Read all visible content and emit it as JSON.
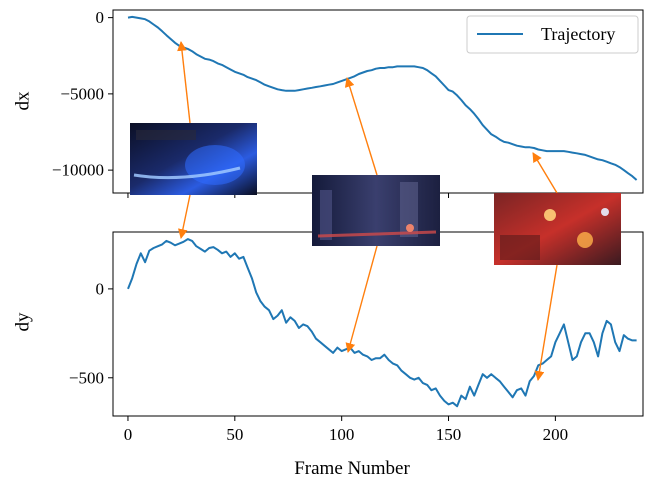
{
  "chart_data": [
    {
      "type": "line",
      "ylabel": "dx",
      "xlim": [
        -7,
        241
      ],
      "ylim": [
        -11500,
        500
      ],
      "yticks": [
        0,
        -5000,
        -10000
      ],
      "ytick_labels": [
        "0",
        "−5000",
        "−10000"
      ],
      "legend": {
        "entries": [
          "Trajectory"
        ],
        "placement": "upper-right"
      },
      "series": [
        {
          "name": "Trajectory",
          "color": "#1f77b4",
          "x": [
            0,
            2,
            4,
            6,
            8,
            10,
            12,
            14,
            16,
            18,
            20,
            22,
            24,
            26,
            28,
            30,
            32,
            34,
            36,
            38,
            40,
            42,
            44,
            46,
            48,
            50,
            52,
            54,
            56,
            58,
            60,
            62,
            64,
            66,
            68,
            70,
            72,
            74,
            76,
            78,
            80,
            82,
            84,
            86,
            88,
            90,
            92,
            94,
            96,
            98,
            100,
            102,
            104,
            106,
            108,
            110,
            112,
            114,
            116,
            118,
            120,
            122,
            124,
            126,
            128,
            130,
            132,
            134,
            136,
            138,
            140,
            142,
            144,
            146,
            148,
            150,
            152,
            154,
            156,
            158,
            160,
            162,
            164,
            166,
            168,
            170,
            172,
            174,
            176,
            178,
            180,
            182,
            184,
            186,
            188,
            190,
            192,
            194,
            196,
            198,
            200,
            202,
            204,
            206,
            208,
            210,
            212,
            214,
            216,
            218,
            220,
            222,
            224,
            226,
            228,
            230,
            232,
            234,
            236,
            238
          ],
          "y": [
            0,
            50,
            0,
            -50,
            -100,
            -250,
            -450,
            -650,
            -900,
            -1150,
            -1400,
            -1650,
            -1850,
            -1950,
            -2050,
            -2200,
            -2400,
            -2550,
            -2700,
            -2750,
            -2850,
            -3000,
            -3100,
            -3250,
            -3400,
            -3550,
            -3650,
            -3750,
            -3900,
            -4000,
            -4100,
            -4250,
            -4400,
            -4500,
            -4600,
            -4700,
            -4750,
            -4800,
            -4800,
            -4800,
            -4750,
            -4700,
            -4650,
            -4600,
            -4550,
            -4500,
            -4450,
            -4400,
            -4350,
            -4250,
            -4150,
            -4050,
            -3950,
            -3850,
            -3700,
            -3600,
            -3500,
            -3450,
            -3350,
            -3300,
            -3300,
            -3250,
            -3250,
            -3200,
            -3200,
            -3200,
            -3200,
            -3200,
            -3250,
            -3300,
            -3450,
            -3650,
            -3850,
            -4150,
            -4450,
            -4750,
            -4850,
            -5100,
            -5400,
            -5750,
            -6000,
            -6300,
            -6650,
            -7050,
            -7350,
            -7650,
            -7800,
            -8000,
            -8150,
            -8200,
            -8300,
            -8400,
            -8450,
            -8500,
            -8500,
            -8550,
            -8650,
            -8700,
            -8750,
            -8750,
            -8750,
            -8750,
            -8750,
            -8800,
            -8850,
            -8900,
            -8950,
            -9000,
            -9100,
            -9200,
            -9300,
            -9350,
            -9450,
            -9550,
            -9650,
            -9800,
            -10000,
            -10200,
            -10400,
            -10650
          ]
        }
      ]
    },
    {
      "type": "line",
      "ylabel": "dy",
      "xlabel": "Frame Number",
      "xlim": [
        -7,
        241
      ],
      "ylim": [
        -715,
        320
      ],
      "xticks": [
        0,
        50,
        100,
        150,
        200
      ],
      "xtick_labels": [
        "0",
        "50",
        "100",
        "150",
        "200"
      ],
      "yticks": [
        0,
        -500
      ],
      "ytick_labels": [
        "0",
        "−500"
      ],
      "series": [
        {
          "name": "Trajectory",
          "color": "#1f77b4",
          "x": [
            0,
            2,
            4,
            6,
            8,
            10,
            12,
            14,
            16,
            18,
            20,
            22,
            24,
            26,
            28,
            30,
            32,
            34,
            36,
            38,
            40,
            42,
            44,
            46,
            48,
            50,
            52,
            54,
            56,
            58,
            60,
            62,
            64,
            66,
            68,
            70,
            72,
            74,
            76,
            78,
            80,
            82,
            84,
            86,
            88,
            90,
            92,
            94,
            96,
            98,
            100,
            102,
            104,
            106,
            108,
            110,
            112,
            114,
            116,
            118,
            120,
            122,
            124,
            126,
            128,
            130,
            132,
            134,
            136,
            138,
            140,
            142,
            144,
            146,
            148,
            150,
            152,
            154,
            156,
            158,
            160,
            162,
            164,
            166,
            168,
            170,
            172,
            174,
            176,
            178,
            180,
            182,
            184,
            186,
            188,
            190,
            192,
            194,
            196,
            198,
            200,
            202,
            204,
            206,
            208,
            210,
            212,
            214,
            216,
            218,
            220,
            222,
            224,
            226,
            228,
            230,
            232,
            234,
            236,
            238
          ],
          "y": [
            0,
            60,
            140,
            200,
            150,
            215,
            230,
            240,
            250,
            270,
            260,
            245,
            255,
            265,
            280,
            270,
            240,
            225,
            210,
            230,
            235,
            220,
            200,
            210,
            180,
            200,
            170,
            180,
            120,
            60,
            -20,
            -70,
            -100,
            -120,
            -170,
            -150,
            -120,
            -190,
            -160,
            -180,
            -220,
            -200,
            -210,
            -240,
            -280,
            -300,
            -320,
            -340,
            -360,
            -330,
            -350,
            -340,
            -330,
            -360,
            -350,
            -370,
            -380,
            -400,
            -390,
            -390,
            -370,
            -400,
            -420,
            -430,
            -460,
            -480,
            -500,
            -510,
            -500,
            -530,
            -540,
            -570,
            -560,
            -600,
            -630,
            -650,
            -640,
            -660,
            -600,
            -620,
            -550,
            -600,
            -540,
            -480,
            -500,
            -480,
            -500,
            -520,
            -550,
            -580,
            -610,
            -570,
            -560,
            -600,
            -520,
            -490,
            -430,
            -420,
            -400,
            -380,
            -300,
            -250,
            -200,
            -300,
            -400,
            -380,
            -300,
            -250,
            -250,
            -300,
            -380,
            -250,
            -180,
            -200,
            -300,
            -350,
            -260,
            -280,
            -290,
            -290
          ]
        }
      ]
    }
  ]
}
